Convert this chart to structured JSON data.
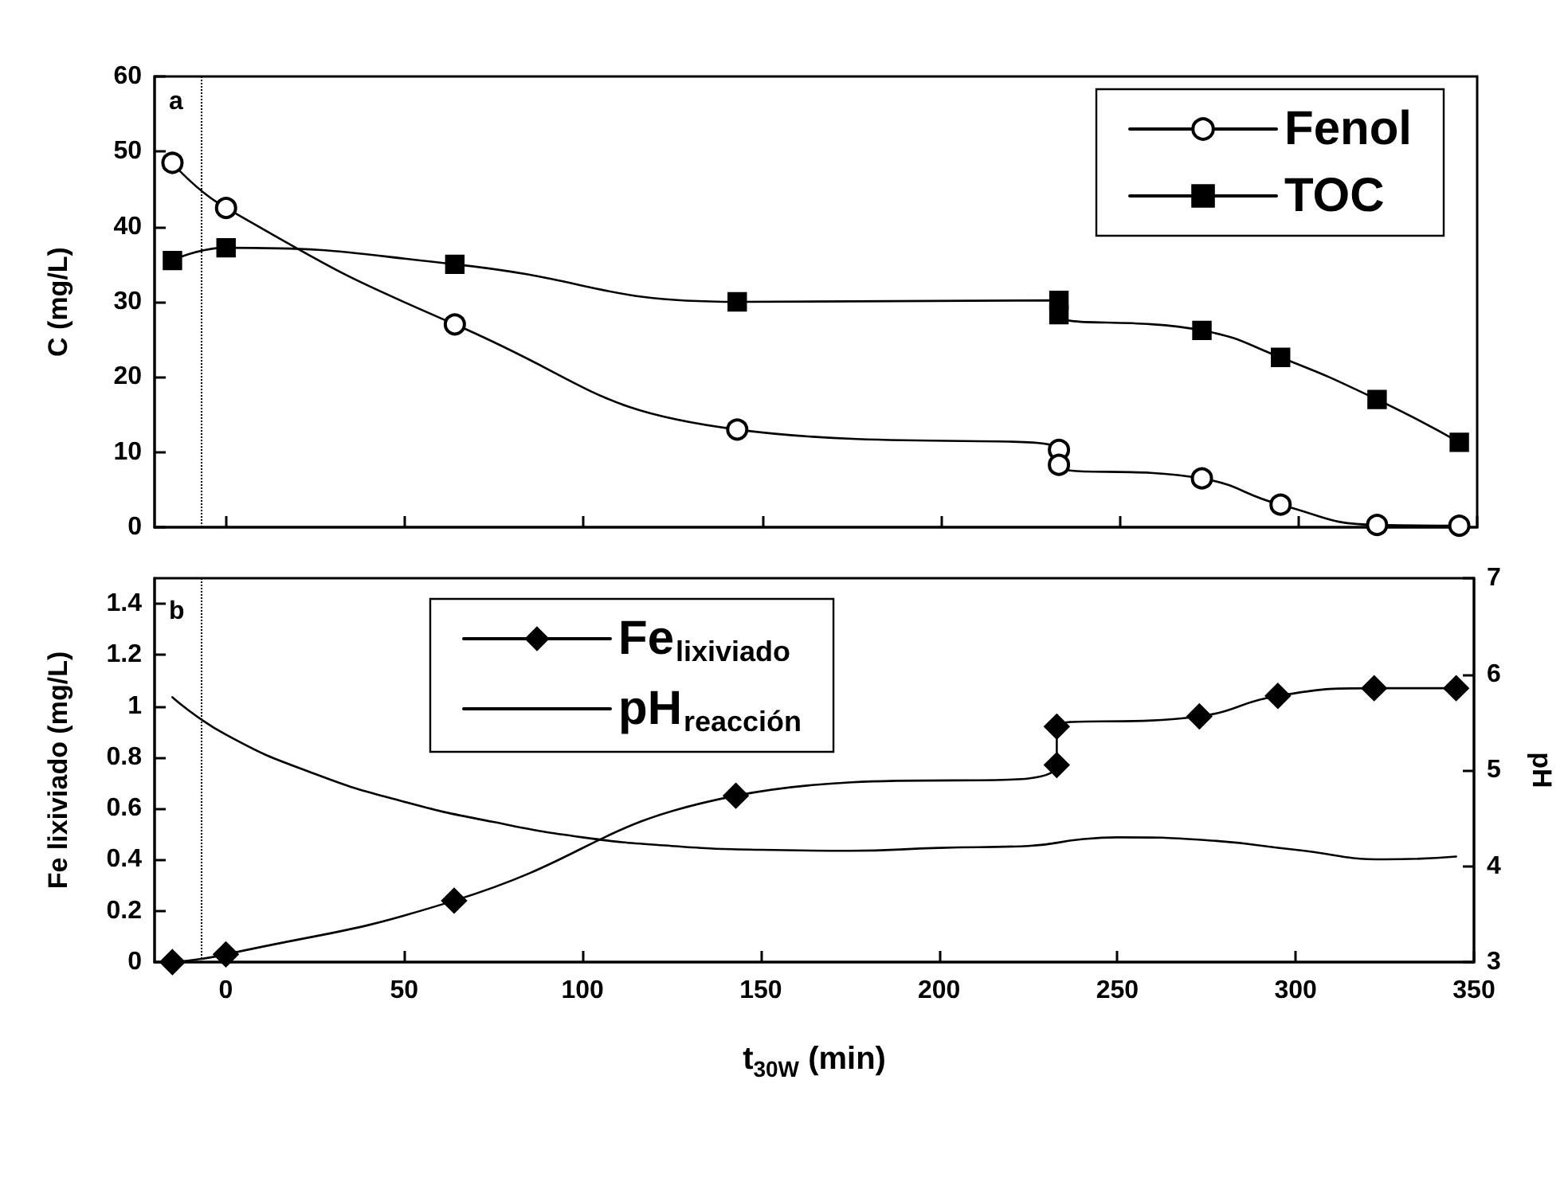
{
  "chart_data": [
    {
      "type": "line",
      "annotations": [
        "a"
      ],
      "ylabel": "C (mg/L)",
      "xlim": [
        -20,
        350
      ],
      "xticks": [
        0,
        50,
        100,
        150,
        200,
        250,
        300,
        350
      ],
      "ylim": [
        0,
        60
      ],
      "yticks": [
        0,
        10,
        20,
        30,
        40,
        50,
        60
      ],
      "tick_labels": "y",
      "grid": false,
      "legend": "top right",
      "ref_lines": [
        {
          "axis": "x",
          "value": -7,
          "line_style": "dotted",
          "color": "#000000"
        }
      ],
      "x": [
        -15,
        0,
        64,
        143,
        233,
        233,
        273,
        295,
        322,
        345
      ],
      "series": [
        {
          "name": "Fenol",
          "color": "#000000",
          "marker": "circle",
          "values": [
            48.5,
            42.5,
            27,
            13,
            10.3,
            8.3,
            6.5,
            3,
            0.3,
            0.2
          ]
        },
        {
          "name": "TOC",
          "color": "#000000",
          "marker": "square",
          "values": [
            35.5,
            37.2,
            35,
            30,
            30.2,
            28.3,
            26.2,
            22.6,
            17,
            11.3
          ]
        }
      ]
    },
    {
      "type": "line",
      "annotations": [
        "b"
      ],
      "xlabel": "t$_{30W}$ (min)",
      "ylabel": "Fe lixiviado (mg/L)",
      "y2label": "pH",
      "xlim": [
        -20,
        350
      ],
      "xticks": [
        0,
        50,
        100,
        150,
        200,
        250,
        300,
        350
      ],
      "ylim": [
        0,
        1.5
      ],
      "yticks": [
        0,
        0.2,
        0.4,
        0.6,
        0.8,
        1.0,
        1.2,
        1.4
      ],
      "y2lim": [
        3,
        7
      ],
      "y2ticks": [
        3,
        4,
        5,
        6,
        7
      ],
      "grid": false,
      "legend": "top",
      "ref_lines": [
        {
          "axis": "x",
          "value": -7,
          "line_style": "dotted",
          "color": "#000000"
        }
      ],
      "series": [
        {
          "name": "Fe$_{lixiviado}$",
          "color": "#000000",
          "marker": "diamond",
          "x": [
            -15,
            0,
            64,
            143,
            233,
            233,
            273,
            295,
            322,
            345
          ],
          "values": [
            0.0,
            0.03,
            0.24,
            0.65,
            0.77,
            0.92,
            0.96,
            1.04,
            1.07,
            1.07
          ]
        },
        {
          "name": "pH$_{reacción}$",
          "color": "#000000",
          "marker": "none",
          "axis": "y2",
          "x": [
            -15,
            0,
            25,
            50,
            75,
            100,
            125,
            150,
            175,
            200,
            225,
            240,
            250,
            275,
            300,
            325,
            345
          ],
          "values": [
            5.76,
            5.37,
            4.96,
            4.67,
            4.46,
            4.3,
            4.21,
            4.17,
            4.16,
            4.19,
            4.21,
            4.28,
            4.3,
            4.27,
            4.17,
            4.07,
            4.1
          ]
        }
      ]
    }
  ]
}
